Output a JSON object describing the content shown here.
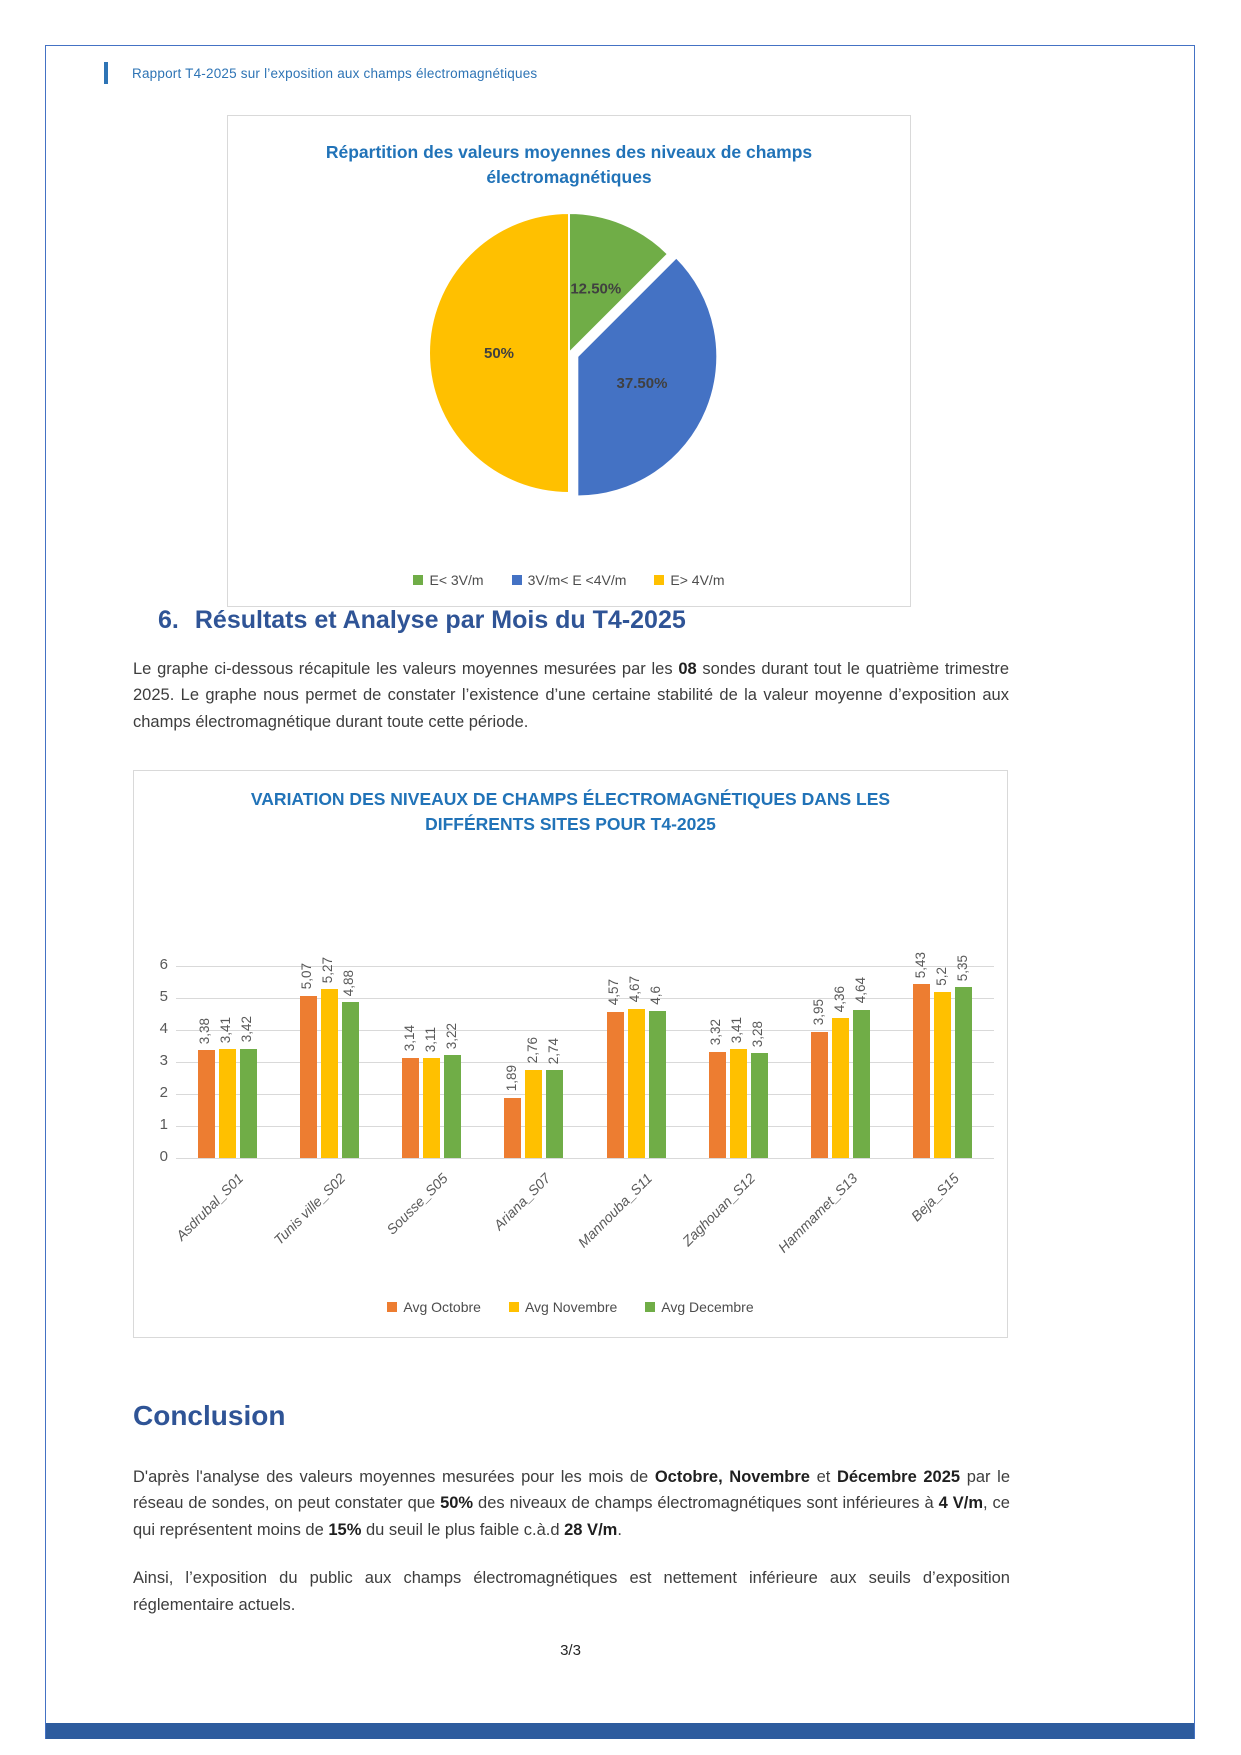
{
  "page": {
    "header": "Rapport T4-2025 sur l’exposition aux champs électromagnétiques",
    "page_number": "3/3"
  },
  "section6": {
    "heading_number": "6.",
    "heading": "Résultats et Analyse par Mois du T4-2025",
    "paragraph": [
      {
        "t": "Le graphe ci-dessous récapitule les valeurs moyennes mesurées par les ",
        "b": false
      },
      {
        "t": "08",
        "b": true
      },
      {
        "t": " sondes durant tout le quatrième trimestre 2025. Le graphe nous permet de constater l’existence d’une certaine stabilité de la valeur moyenne d’exposition aux champs électromagnétique durant toute cette période.",
        "b": false
      }
    ]
  },
  "conclusion": {
    "heading": "Conclusion",
    "p1": [
      {
        "t": "D'après l'analyse des valeurs moyennes mesurées pour les mois de ",
        "b": false
      },
      {
        "t": "Octobre, Novembre",
        "b": true
      },
      {
        "t": " et ",
        "b": false
      },
      {
        "t": "Décembre 2025",
        "b": true
      },
      {
        "t": " par le réseau de sondes, on peut constater que ",
        "b": false
      },
      {
        "t": "50%",
        "b": true
      },
      {
        "t": " des niveaux de champs électromagnétiques sont inférieures à ",
        "b": false
      },
      {
        "t": "4 V/m",
        "b": true
      },
      {
        "t": ", ce qui représentent moins de ",
        "b": false
      },
      {
        "t": "15%",
        "b": true
      },
      {
        "t": " du seuil le plus faible c.à.d ",
        "b": false
      },
      {
        "t": "28 V/m",
        "b": true
      },
      {
        "t": ".",
        "b": false
      }
    ],
    "p2": "Ainsi, l’exposition du public aux champs électromagnétiques est nettement inférieure aux seuils d’exposition réglementaire actuels."
  },
  "chart_data": [
    {
      "type": "pie",
      "title": "Répartition des valeurs moyennes des niveaux de champs électromagnétiques",
      "legend_position": "bottom",
      "slices": [
        {
          "label": "E< 3V/m",
          "value": 12.5,
          "display": "12.50%",
          "color": "#70AD47",
          "exploded": false
        },
        {
          "label": "3V/m< E <4V/m",
          "value": 37.5,
          "display": "37.50%",
          "color": "#4472C4",
          "exploded": true
        },
        {
          "label": "E> 4V/m",
          "value": 50,
          "display": "50%",
          "color": "#FFC000",
          "exploded": false
        }
      ]
    },
    {
      "type": "bar",
      "title": "VARIATION DES NIVEAUX DE CHAMPS ÉLECTROMAGNÉTIQUES DANS LES DIFFÉRENTS SITES POUR T4-2025",
      "categories": [
        "Asdrubal_S01",
        "Tunis ville_S02",
        "Sousse_S05",
        "Ariana_S07",
        "Mannouba_S11",
        "Zaghouan_S12",
        "Hammamet_S13",
        "Beja_S15"
      ],
      "series": [
        {
          "name": "Avg Octobre",
          "color": "#ED7D31",
          "values": [
            3.38,
            5.07,
            3.14,
            1.89,
            4.57,
            3.32,
            3.95,
            5.43
          ]
        },
        {
          "name": "Avg Novembre",
          "color": "#FFC000",
          "values": [
            3.41,
            5.27,
            3.11,
            2.76,
            4.67,
            3.41,
            4.36,
            5.2
          ]
        },
        {
          "name": "Avg Decembre",
          "color": "#70AD47",
          "values": [
            3.42,
            4.88,
            3.22,
            2.74,
            4.6,
            3.28,
            4.64,
            5.35
          ]
        }
      ],
      "ylim": [
        0,
        6
      ],
      "yticks": [
        0,
        1,
        2,
        3,
        4,
        5,
        6
      ],
      "grid": true,
      "legend_position": "bottom"
    }
  ],
  "colors": {
    "header_blue": "#2E74B5",
    "heading_navy": "#2F5496",
    "chart_title_blue": "#2173B8",
    "page_border_blue": "#4472C4",
    "bottom_bar_blue": "#2E5C9E",
    "gridline_gray": "#D9D9D9",
    "label_gray": "#595959"
  }
}
